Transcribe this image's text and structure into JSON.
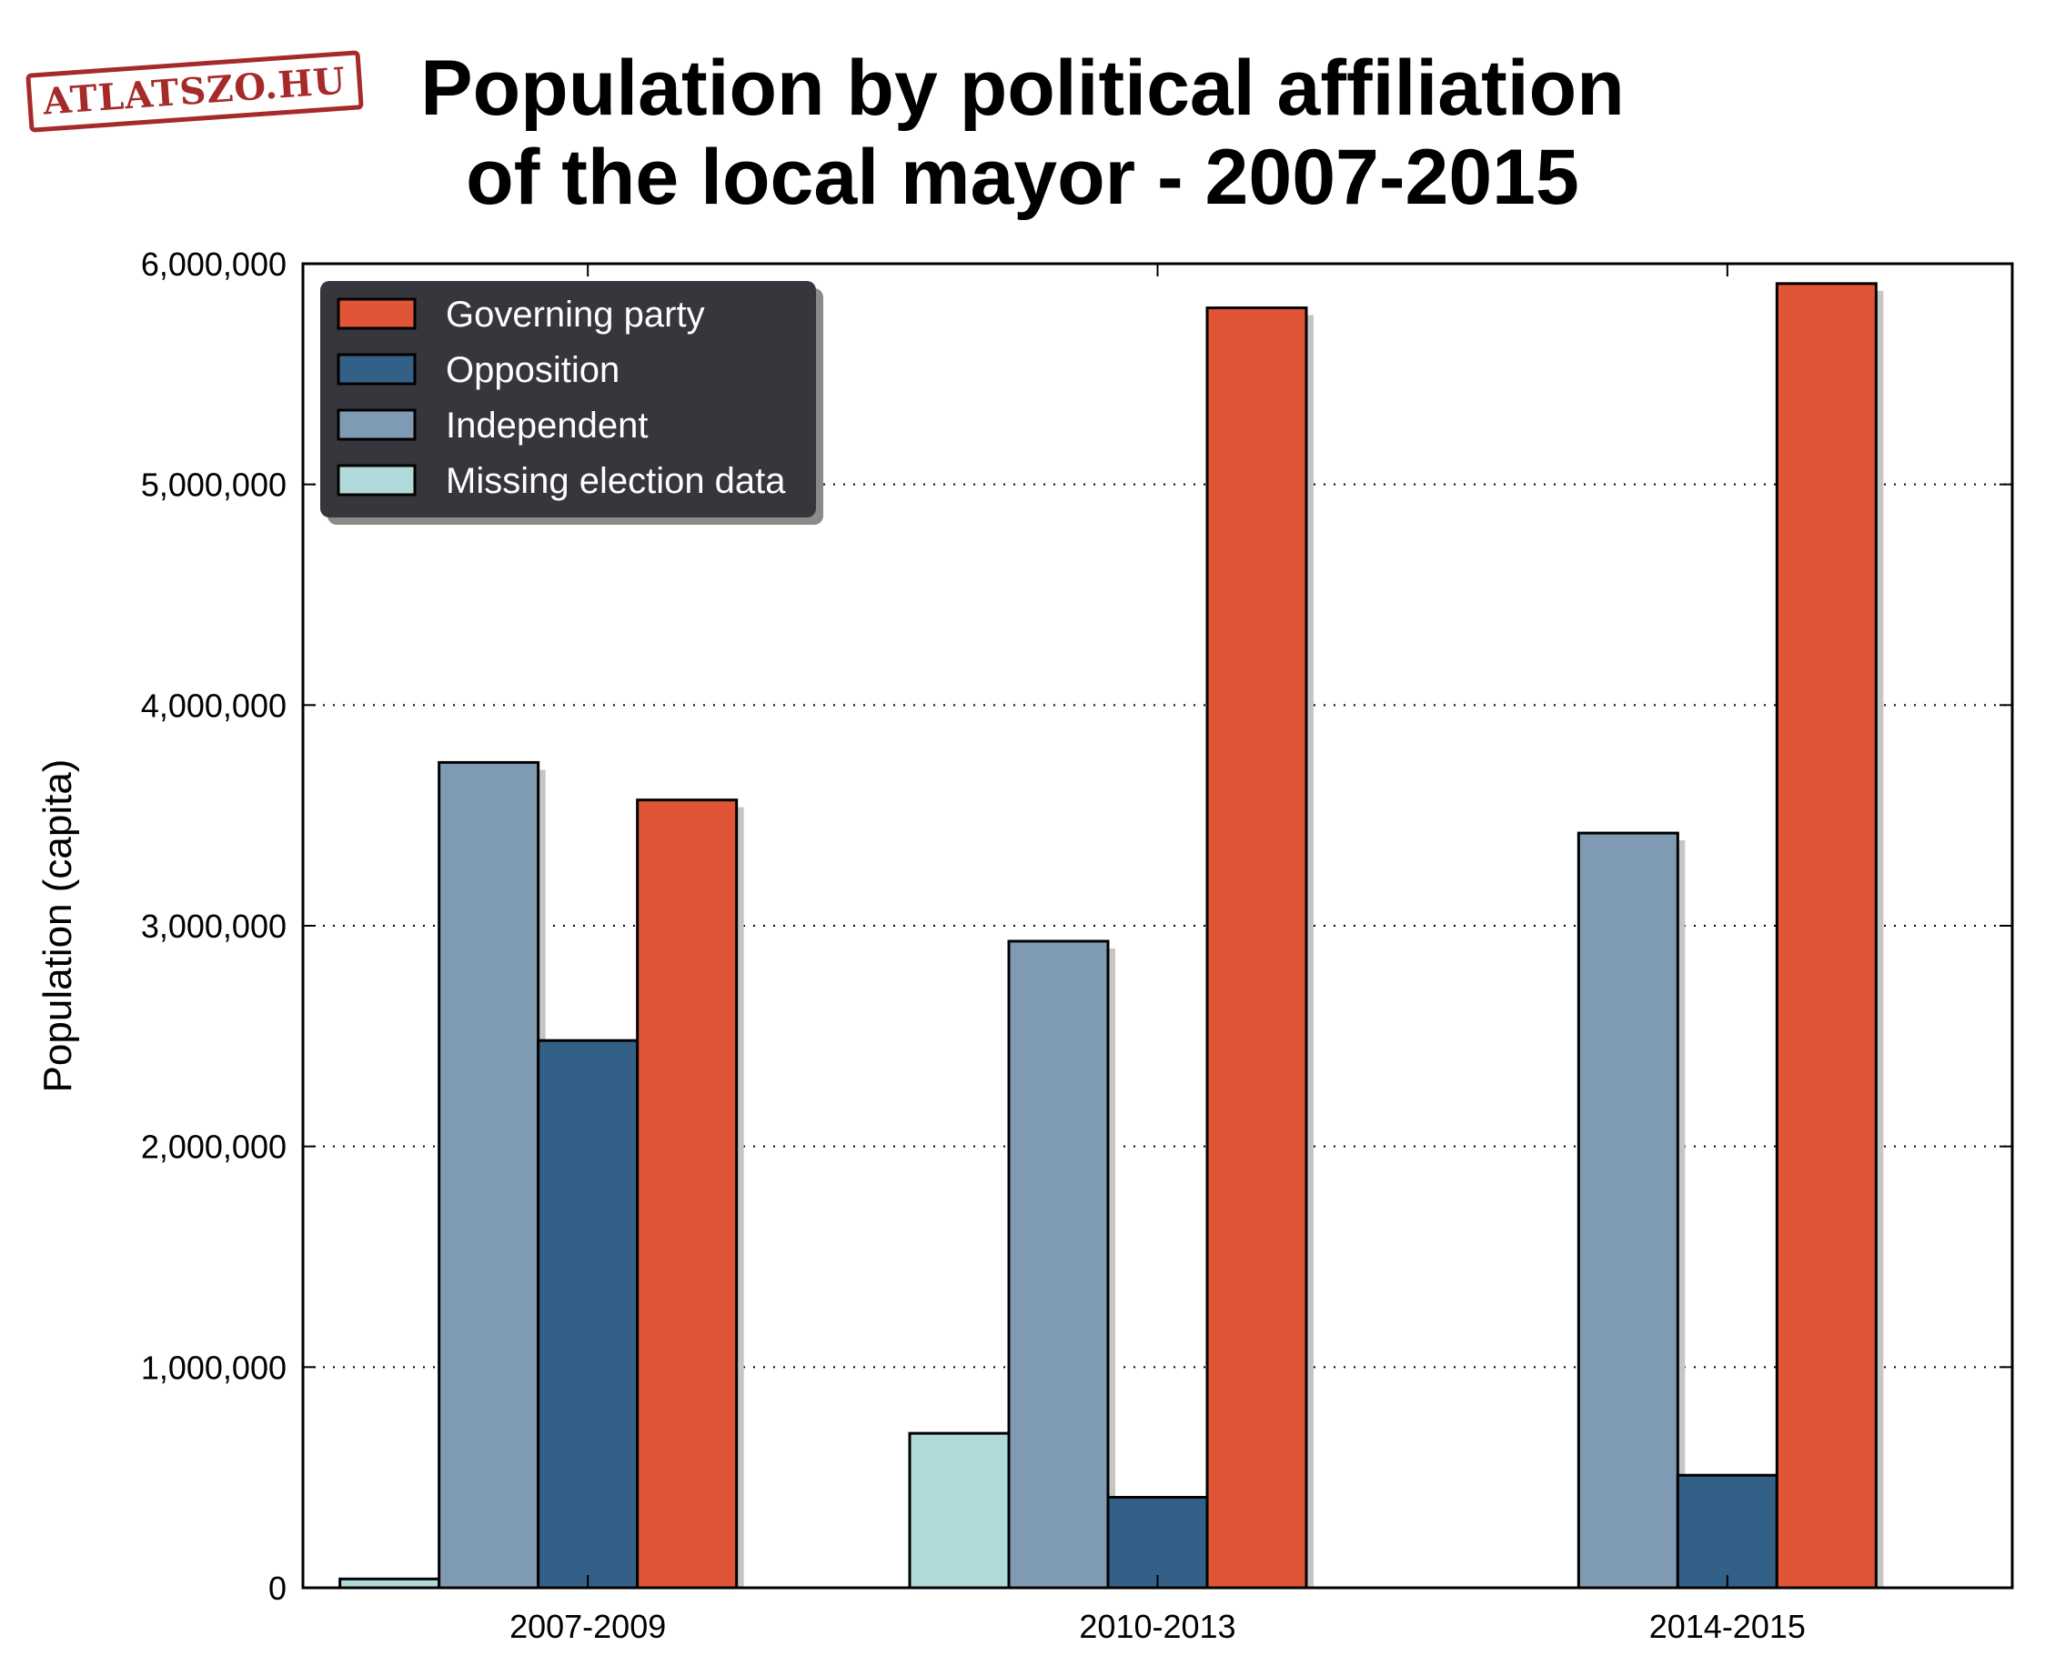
{
  "logo": {
    "text": "ATLATSZO.HU",
    "color": "#a62a2a"
  },
  "chart_data": {
    "type": "bar",
    "title": "Population by political affiliation of the local mayor - 2007-2015",
    "title_lines": [
      "Population by political affiliation",
      "of the local mayor - 2007-2015"
    ],
    "xlabel": "",
    "ylabel": "Population (capita)",
    "ylim": [
      0,
      6000000
    ],
    "yticks": [
      0,
      1000000,
      2000000,
      3000000,
      4000000,
      5000000,
      6000000
    ],
    "ytick_labels": [
      "0",
      "1,000,000",
      "2,000,000",
      "3,000,000",
      "4,000,000",
      "5,000,000",
      "6,000,000"
    ],
    "grid": "horizontal dotted",
    "legend_position": "top-left",
    "categories": [
      "2007-2009",
      "2010-2013",
      "2014-2015"
    ],
    "bar_order": [
      "Missing election data",
      "Independent",
      "Opposition",
      "Governing party"
    ],
    "series": [
      {
        "name": "Governing party",
        "color": "#e05536",
        "values": [
          3570000,
          5800000,
          5910000
        ]
      },
      {
        "name": "Opposition",
        "color": "#336087",
        "values": [
          2480000,
          410000,
          510000
        ]
      },
      {
        "name": "Independent",
        "color": "#7f9bb3",
        "values": [
          3740000,
          2930000,
          3420000
        ]
      },
      {
        "name": "Missing election data",
        "color": "#b0dad9",
        "values": [
          40000,
          700000,
          0
        ]
      }
    ]
  }
}
